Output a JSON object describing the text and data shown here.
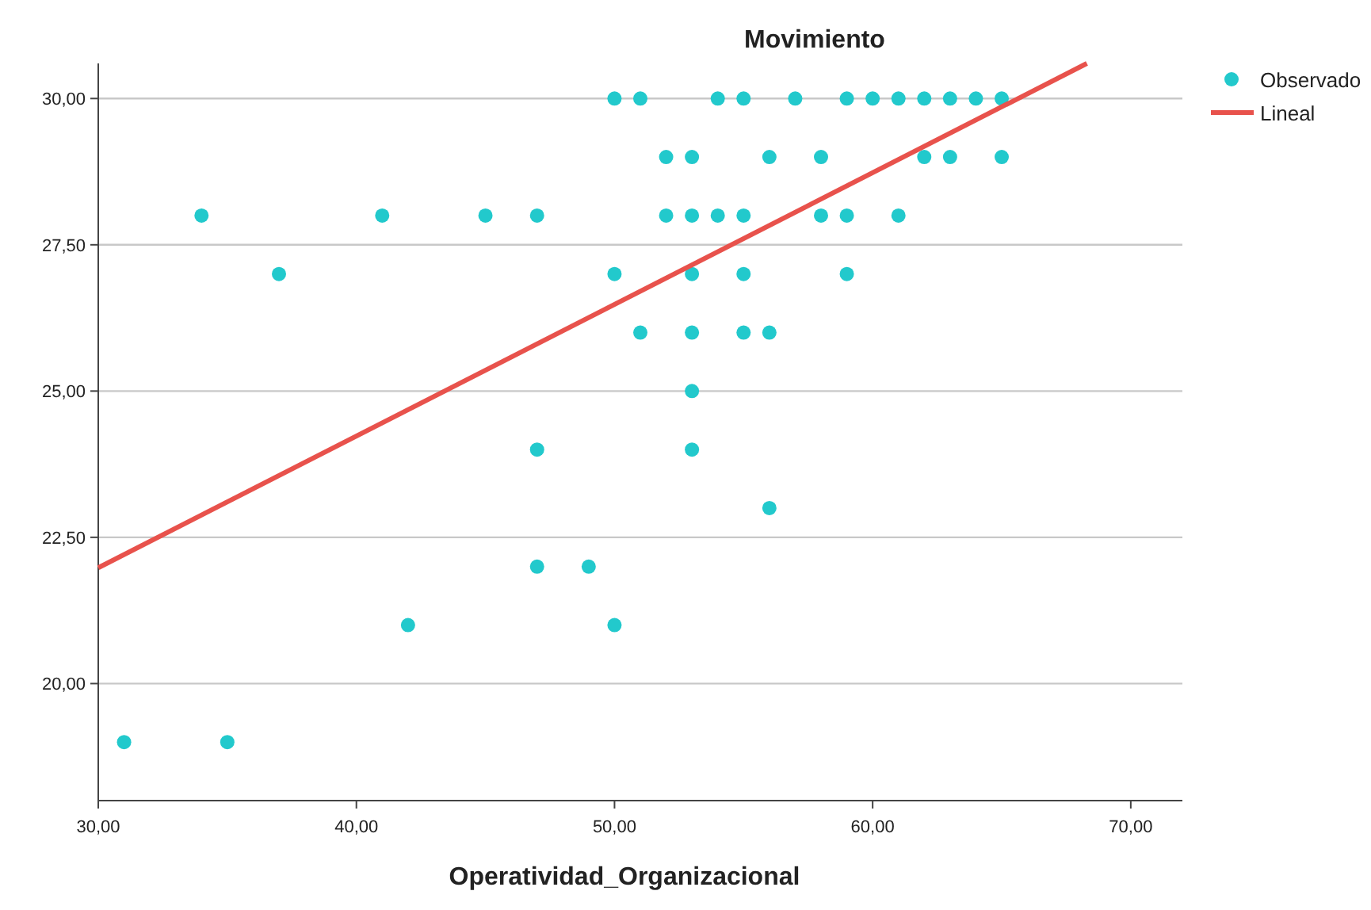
{
  "chart_data": {
    "type": "scatter",
    "title": "Movimiento",
    "xlabel": "Operatividad_Organizacional",
    "xlim": [
      30,
      72
    ],
    "ylim": [
      18,
      30.6
    ],
    "xticks": [
      {
        "value": 30,
        "label": "30,00"
      },
      {
        "value": 40,
        "label": "40,00"
      },
      {
        "value": 50,
        "label": "50,00"
      },
      {
        "value": 60,
        "label": "60,00"
      },
      {
        "value": 70,
        "label": "70,00"
      }
    ],
    "yticks": [
      {
        "value": 20,
        "label": "20,00"
      },
      {
        "value": 22.5,
        "label": "22,50"
      },
      {
        "value": 25,
        "label": "25,00"
      },
      {
        "value": 27.5,
        "label": "27,50"
      },
      {
        "value": 30,
        "label": "30,00"
      }
    ],
    "grid": "y",
    "legend": "top right",
    "series": [
      {
        "name": "Observado",
        "marker": "circle",
        "color": "#22c9cc",
        "x": [
          50,
          51,
          54,
          55,
          57,
          59,
          60,
          61,
          62,
          63,
          64,
          65,
          52,
          53,
          56,
          58,
          62,
          63,
          65,
          34,
          41,
          45,
          47,
          52,
          53,
          54,
          55,
          58,
          59,
          61,
          37,
          50,
          53,
          55,
          59,
          51,
          53,
          55,
          56,
          53,
          47,
          53,
          56,
          47,
          49,
          42,
          50,
          31,
          35
        ],
        "values": [
          30,
          30,
          30,
          30,
          30,
          30,
          30,
          30,
          30,
          30,
          30,
          30,
          29,
          29,
          29,
          29,
          29,
          29,
          29,
          28,
          28,
          28,
          28,
          28,
          28,
          28,
          28,
          28,
          28,
          28,
          27,
          27,
          27,
          27,
          27,
          26,
          26,
          26,
          26,
          25,
          24,
          24,
          23,
          22,
          22,
          21,
          21,
          19,
          19
        ]
      },
      {
        "name": "Lineal",
        "type": "line",
        "color": "#e8524c",
        "line_style": "solid",
        "x": [
          30,
          68.3
        ],
        "values": [
          21.98,
          30.6
        ]
      }
    ]
  }
}
